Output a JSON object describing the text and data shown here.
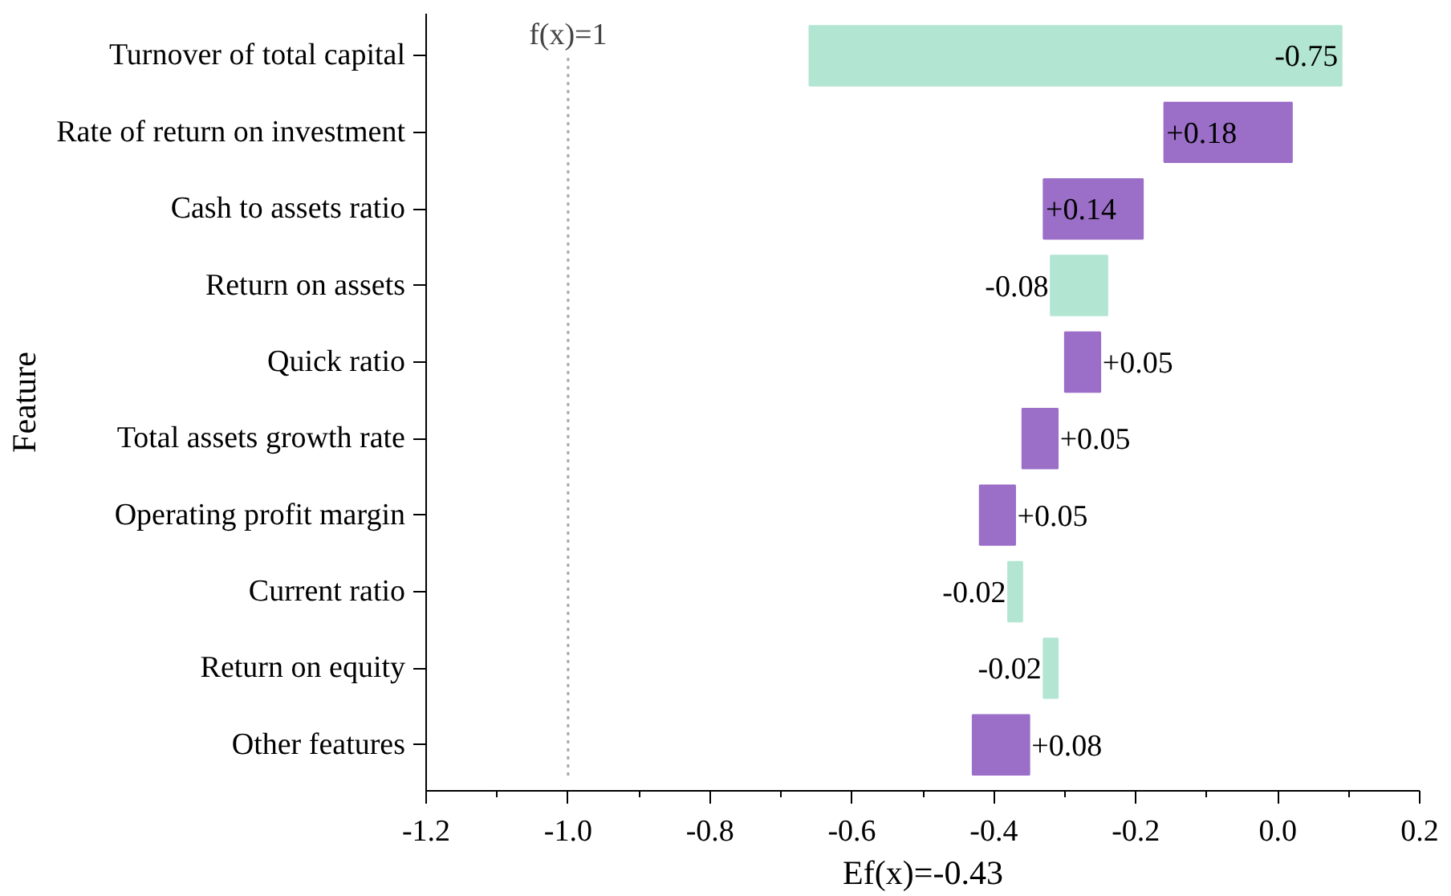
{
  "chart_data": {
    "type": "bar",
    "orientation": "horizontal",
    "categories": [
      "Turnover of total capital",
      "Rate of return on investment",
      "Cash to assets ratio",
      "Return on assets",
      "Quick ratio",
      "Total assets growth rate",
      "Operating profit margin",
      "Current ratio",
      "Return on equity",
      "Other features"
    ],
    "base": [
      0.09,
      -0.16,
      -0.33,
      -0.24,
      -0.3,
      -0.36,
      -0.42,
      -0.36,
      -0.31,
      -0.43
    ],
    "values": [
      -0.75,
      0.18,
      0.14,
      -0.08,
      0.05,
      0.05,
      0.05,
      -0.02,
      -0.02,
      0.08
    ],
    "value_labels": [
      "-0.75",
      "+0.18",
      "+0.14",
      "-0.08",
      "+0.05",
      "+0.05",
      "+0.05",
      "-0.02",
      "-0.02",
      "+0.08"
    ],
    "colors": [
      "#b3e5d3",
      "#9b6ec8",
      "#9b6ec8",
      "#b3e5d3",
      "#9b6ec8",
      "#9b6ec8",
      "#9b6ec8",
      "#b3e5d3",
      "#b3e5d3",
      "#9b6ec8"
    ],
    "xlim": [
      -1.2,
      0.2
    ],
    "xticks": [
      {
        "value": -1.2,
        "label": "-1.2"
      },
      {
        "value": -1.0,
        "label": "-1.0"
      },
      {
        "value": -0.8,
        "label": "-0.8"
      },
      {
        "value": -0.6,
        "label": "-0.6"
      },
      {
        "value": -0.4,
        "label": "-0.4"
      },
      {
        "value": -0.2,
        "label": "-0.2"
      },
      {
        "value": 0.0,
        "label": "0.0"
      },
      {
        "value": 0.2,
        "label": "0.2"
      }
    ],
    "xlabel": "Ef(x)=-0.43",
    "ylabel": "Feature",
    "ref_lines": [
      {
        "axis": "x",
        "value": -1.0,
        "color": "#aaaaaa",
        "line_style": "dotted"
      }
    ],
    "annotations": [
      "f(x)=1"
    ],
    "grid": false
  }
}
